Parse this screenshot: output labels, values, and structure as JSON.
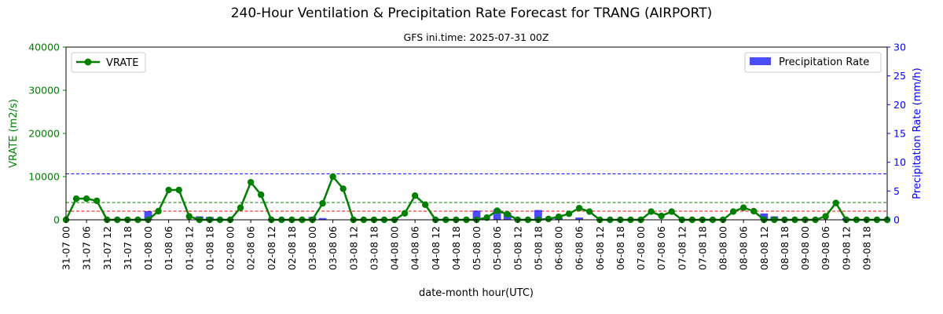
{
  "chart_data": {
    "type": "line",
    "title": "240-Hour Ventilation & Precipitation Rate Forecast for TRANG (AIRPORT)",
    "subtitle": "GFS ini.time: 2025-07-31 00Z",
    "xlabel": "date-month hour(UTC)",
    "ylabel_left": "VRATE (m2/s)",
    "ylabel_right": "Precipitation Rate (mm/h)",
    "ylim_left": [
      0,
      40000
    ],
    "ylim_right": [
      0,
      30
    ],
    "yticks_left": [
      "0",
      "10000",
      "20000",
      "30000",
      "40000"
    ],
    "yticks_right": [
      "0",
      "5",
      "10",
      "15",
      "20",
      "25",
      "30"
    ],
    "x": [
      "31-07 00",
      "31-07 03",
      "31-07 06",
      "31-07 09",
      "31-07 12",
      "31-07 15",
      "31-07 18",
      "31-07 21",
      "01-08 00",
      "01-08 03",
      "01-08 06",
      "01-08 09",
      "01-08 12",
      "01-08 15",
      "01-08 18",
      "01-08 21",
      "02-08 00",
      "02-08 03",
      "02-08 06",
      "02-08 09",
      "02-08 12",
      "02-08 15",
      "02-08 18",
      "02-08 21",
      "03-08 00",
      "03-08 03",
      "03-08 06",
      "03-08 09",
      "03-08 12",
      "03-08 15",
      "03-08 18",
      "03-08 21",
      "04-08 00",
      "04-08 03",
      "04-08 06",
      "04-08 09",
      "04-08 12",
      "04-08 15",
      "04-08 18",
      "04-08 21",
      "05-08 00",
      "05-08 03",
      "05-08 06",
      "05-08 09",
      "05-08 12",
      "05-08 15",
      "05-08 18",
      "05-08 21",
      "06-08 00",
      "06-08 03",
      "06-08 06",
      "06-08 09",
      "06-08 12",
      "06-08 15",
      "06-08 18",
      "06-08 21",
      "07-08 00",
      "07-08 03",
      "07-08 06",
      "07-08 09",
      "07-08 12",
      "07-08 15",
      "07-08 18",
      "07-08 21",
      "08-08 00",
      "08-08 03",
      "08-08 06",
      "08-08 09",
      "08-08 12",
      "08-08 15",
      "08-08 18",
      "08-08 21",
      "09-08 00",
      "09-08 03",
      "09-08 06",
      "09-08 09",
      "09-08 12",
      "09-08 15",
      "09-08 18",
      "09-08 21",
      "10-08 00"
    ],
    "xtick_labels": [
      "31-07 00",
      "31-07 06",
      "31-07 12",
      "31-07 18",
      "01-08 00",
      "01-08 06",
      "01-08 12",
      "01-08 18",
      "02-08 00",
      "02-08 06",
      "02-08 12",
      "02-08 18",
      "03-08 00",
      "03-08 06",
      "03-08 12",
      "03-08 18",
      "04-08 00",
      "04-08 06",
      "04-08 12",
      "04-08 18",
      "05-08 00",
      "05-08 06",
      "05-08 12",
      "05-08 18",
      "06-08 00",
      "06-08 06",
      "06-08 12",
      "06-08 18",
      "07-08 00",
      "07-08 06",
      "07-08 12",
      "07-08 18",
      "08-08 00",
      "08-08 06",
      "08-08 12",
      "08-08 18",
      "09-08 00",
      "09-08 06",
      "09-08 12",
      "09-08 18"
    ],
    "series": [
      {
        "name": "VRATE",
        "type": "line",
        "axis": "left",
        "color": "#008000",
        "values": [
          0,
          4900,
          4900,
          4400,
          0,
          0,
          0,
          0,
          0,
          2000,
          6900,
          6900,
          800,
          0,
          0,
          0,
          0,
          2800,
          8700,
          5800,
          0,
          0,
          0,
          0,
          0,
          3800,
          10000,
          7200,
          0,
          0,
          0,
          0,
          0,
          1500,
          5600,
          3500,
          0,
          0,
          0,
          0,
          0,
          500,
          2100,
          1300,
          0,
          0,
          0,
          200,
          700,
          1400,
          2700,
          1900,
          0,
          0,
          0,
          0,
          0,
          1900,
          900,
          1900,
          0,
          0,
          0,
          0,
          0,
          1900,
          2800,
          2000,
          0,
          0,
          0,
          0,
          0,
          0,
          800,
          3900,
          0,
          0,
          0,
          0,
          0
        ]
      },
      {
        "name": "Precipitation Rate",
        "type": "bar",
        "axis": "right",
        "color": "#0000ff",
        "values": [
          0,
          0,
          0,
          0,
          0,
          0,
          0,
          0,
          1.5,
          0,
          0,
          0,
          0,
          0.6,
          0.5,
          0.2,
          0,
          0,
          0,
          0,
          0,
          0,
          0,
          0,
          0.5,
          0.3,
          0,
          0,
          0,
          0,
          0,
          0,
          0.2,
          0,
          0,
          0,
          0,
          0,
          0,
          0,
          1.6,
          0,
          1.8,
          1.2,
          0,
          0,
          1.7,
          0.2,
          0.5,
          0,
          0.4,
          0,
          0,
          0,
          0,
          0.1,
          0,
          0,
          0,
          0,
          0,
          0,
          0.2,
          0,
          0,
          0,
          0,
          0,
          1.1,
          0.6,
          0,
          0,
          0,
          0,
          0,
          0,
          0.3,
          0,
          0,
          0,
          0
        ]
      }
    ],
    "reference_lines": [
      {
        "axis": "right",
        "value": 8,
        "color": "#0000ff",
        "style": "dashed"
      },
      {
        "axis": "left",
        "value": 4000,
        "color": "#008000",
        "style": "dashed"
      },
      {
        "axis": "left",
        "value": 2000,
        "color": "#ff0000",
        "style": "dashed"
      }
    ],
    "grid": false,
    "legend_left_placement": "top-left",
    "legend_right_placement": "top-right",
    "colors": {
      "left_axis": "#008000",
      "right_axis": "#0000ff",
      "title": "#000000"
    }
  }
}
